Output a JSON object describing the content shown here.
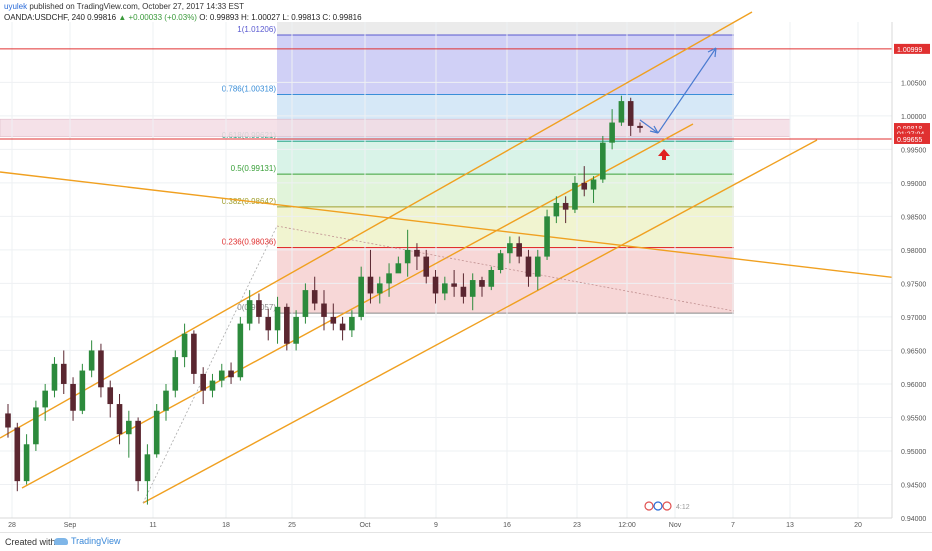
{
  "header": {
    "author": "uyulek",
    "published_text": "published on TradingView.com, October 27, 2017 14:33 EST",
    "symbol": "OANDA:USDCHF, 240",
    "last": "0.99816",
    "change": "+0.00033 (+0.03%)",
    "ohlc": "O: 0.99893 H: 1.00027 L: 0.99813 C: 0.99816"
  },
  "footer": {
    "created_with": "Created with",
    "brand": "TradingView"
  },
  "chart_data": {
    "type": "candlestick",
    "instrument": "OANDA:USDCHF",
    "timeframe": "240",
    "x_axis_ticks": [
      "28",
      "Sep",
      "11",
      "18",
      "25",
      "Oct",
      "9",
      "16",
      "23",
      "12:00",
      "Nov",
      "7",
      "13",
      "20"
    ],
    "y_axis_ticks": [
      "0.94000",
      "0.94500",
      "0.95000",
      "0.95500",
      "0.96000",
      "0.96500",
      "0.97000",
      "0.97500",
      "0.98000",
      "0.98500",
      "0.99000",
      "0.99500",
      "1.00000",
      "1.00500"
    ],
    "y_range": [
      0.94,
      1.014
    ],
    "price_labels": [
      {
        "text": "1.00999",
        "value": 1.00999,
        "color": "#e03030"
      },
      {
        "text": "0.99818",
        "value": 0.99818,
        "color": "#e03030"
      },
      {
        "text": "01:27:04",
        "value": 0.99735,
        "color": "#e03030"
      },
      {
        "text": "0.99655",
        "value": 0.99655,
        "color": "#e03030"
      }
    ],
    "horizontal_lines": [
      {
        "value": 1.00999,
        "color": "#e03030"
      },
      {
        "value": 0.99655,
        "color": "#e03030"
      }
    ],
    "fibonacci": {
      "levels": [
        {
          "ratio": "1",
          "price": 1.01206,
          "label": "1(1.01206)",
          "color": "#5a5ad0",
          "fill": "#c8c8f4"
        },
        {
          "ratio": "0.786",
          "price": 1.00318,
          "label": "0.786(1.00318)",
          "color": "#3a8ed8",
          "fill": "#cfe4f6"
        },
        {
          "ratio": "0.618",
          "price": 0.99621,
          "label": "0.618(0.99621)",
          "color": "#2aa888",
          "fill": "#d2f1e4"
        },
        {
          "ratio": "0.5",
          "price": 0.99131,
          "label": "0.5(0.99131)",
          "color": "#3aa03a",
          "fill": "#dcf2d4"
        },
        {
          "ratio": "0.382",
          "price": 0.98642,
          "label": "0.382(0.98642)",
          "color": "#a0a030",
          "fill": "#eef2c8"
        },
        {
          "ratio": "0.236",
          "price": 0.98036,
          "label": "0.236(0.98036)",
          "color": "#e03030",
          "fill": "#f6d0d0"
        },
        {
          "ratio": "0",
          "price": 0.97057,
          "label": "0(0.97057)",
          "color": "#888888",
          "fill": "#f6d0d0"
        }
      ],
      "top_fill": "#e6e6e6"
    },
    "zone": {
      "top": 0.9995,
      "bottom": 0.9969,
      "color": "#f4dce4"
    },
    "trendlines": [
      {
        "name": "channel-upper",
        "color": "#f0a020"
      },
      {
        "name": "channel-middle",
        "color": "#f0a020"
      },
      {
        "name": "channel-lower",
        "color": "#f0a020"
      },
      {
        "name": "long-downtrend",
        "color": "#f0a020"
      }
    ],
    "projection": {
      "color": "#4a7bd0"
    },
    "candles": [
      [
        0.9556,
        0.957,
        0.952,
        0.9535
      ],
      [
        0.9535,
        0.9542,
        0.944,
        0.9455
      ],
      [
        0.9455,
        0.9525,
        0.945,
        0.951
      ],
      [
        0.951,
        0.9575,
        0.95,
        0.9565
      ],
      [
        0.9565,
        0.96,
        0.9545,
        0.959
      ],
      [
        0.959,
        0.964,
        0.958,
        0.963
      ],
      [
        0.963,
        0.965,
        0.9585,
        0.96
      ],
      [
        0.96,
        0.961,
        0.9545,
        0.956
      ],
      [
        0.956,
        0.963,
        0.9555,
        0.962
      ],
      [
        0.962,
        0.9665,
        0.961,
        0.965
      ],
      [
        0.965,
        0.966,
        0.958,
        0.9595
      ],
      [
        0.9595,
        0.9605,
        0.955,
        0.957
      ],
      [
        0.957,
        0.9585,
        0.951,
        0.9525
      ],
      [
        0.9525,
        0.956,
        0.949,
        0.9545
      ],
      [
        0.9545,
        0.955,
        0.944,
        0.9455
      ],
      [
        0.9455,
        0.951,
        0.942,
        0.9495
      ],
      [
        0.9495,
        0.957,
        0.949,
        0.956
      ],
      [
        0.956,
        0.96,
        0.9545,
        0.959
      ],
      [
        0.959,
        0.965,
        0.958,
        0.964
      ],
      [
        0.964,
        0.969,
        0.9625,
        0.9675
      ],
      [
        0.9675,
        0.968,
        0.96,
        0.9615
      ],
      [
        0.9615,
        0.9625,
        0.957,
        0.959
      ],
      [
        0.959,
        0.9615,
        0.958,
        0.9605
      ],
      [
        0.9605,
        0.963,
        0.9595,
        0.962
      ],
      [
        0.962,
        0.9632,
        0.96,
        0.961
      ],
      [
        0.961,
        0.97,
        0.9605,
        0.969
      ],
      [
        0.969,
        0.974,
        0.968,
        0.9725
      ],
      [
        0.9725,
        0.9735,
        0.969,
        0.97
      ],
      [
        0.97,
        0.9712,
        0.9665,
        0.968
      ],
      [
        0.968,
        0.973,
        0.966,
        0.9715
      ],
      [
        0.9715,
        0.972,
        0.965,
        0.966
      ],
      [
        0.966,
        0.971,
        0.965,
        0.97
      ],
      [
        0.97,
        0.975,
        0.969,
        0.974
      ],
      [
        0.974,
        0.976,
        0.971,
        0.972
      ],
      [
        0.972,
        0.974,
        0.968,
        0.97
      ],
      [
        0.97,
        0.972,
        0.968,
        0.969
      ],
      [
        0.969,
        0.97,
        0.9665,
        0.968
      ],
      [
        0.968,
        0.971,
        0.967,
        0.97
      ],
      [
        0.97,
        0.9775,
        0.9695,
        0.976
      ],
      [
        0.976,
        0.98,
        0.972,
        0.9735
      ],
      [
        0.9735,
        0.976,
        0.972,
        0.975
      ],
      [
        0.975,
        0.978,
        0.973,
        0.9765
      ],
      [
        0.9765,
        0.979,
        0.977,
        0.978
      ],
      [
        0.978,
        0.983,
        0.976,
        0.98
      ],
      [
        0.98,
        0.981,
        0.977,
        0.979
      ],
      [
        0.979,
        0.98,
        0.975,
        0.976
      ],
      [
        0.976,
        0.977,
        0.972,
        0.9735
      ],
      [
        0.9735,
        0.976,
        0.9725,
        0.975
      ],
      [
        0.975,
        0.977,
        0.973,
        0.9745
      ],
      [
        0.9745,
        0.9765,
        0.972,
        0.973
      ],
      [
        0.973,
        0.9765,
        0.971,
        0.9755
      ],
      [
        0.9755,
        0.976,
        0.973,
        0.9745
      ],
      [
        0.9745,
        0.9775,
        0.974,
        0.977
      ],
      [
        0.977,
        0.98,
        0.9765,
        0.9795
      ],
      [
        0.9795,
        0.982,
        0.978,
        0.981
      ],
      [
        0.981,
        0.982,
        0.978,
        0.979
      ],
      [
        0.979,
        0.98,
        0.9745,
        0.976
      ],
      [
        0.976,
        0.98,
        0.974,
        0.979
      ],
      [
        0.979,
        0.986,
        0.9785,
        0.985
      ],
      [
        0.985,
        0.988,
        0.984,
        0.987
      ],
      [
        0.987,
        0.988,
        0.984,
        0.986
      ],
      [
        0.986,
        0.991,
        0.9855,
        0.99
      ],
      [
        0.99,
        0.9925,
        0.988,
        0.989
      ],
      [
        0.989,
        0.991,
        0.987,
        0.9905
      ],
      [
        0.9905,
        0.997,
        0.99,
        0.996
      ],
      [
        0.996,
        1.001,
        0.995,
        0.999
      ],
      [
        0.999,
        1.003,
        0.9985,
        1.0022
      ],
      [
        1.0022,
        1.0027,
        0.997,
        0.9985
      ],
      [
        0.9985,
        0.999,
        0.9975,
        0.9982
      ]
    ]
  },
  "watermark": "4:12"
}
